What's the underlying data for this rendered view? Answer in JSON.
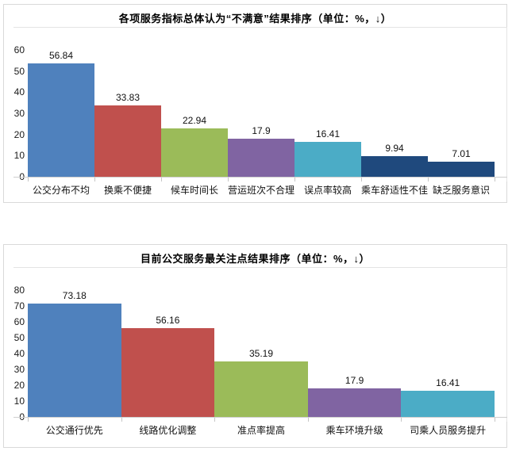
{
  "styles": {
    "panel_border": "#d9d9d9",
    "axis_line_color": "#cfcfcf",
    "frame_line_color": "#e4e4e4",
    "text_color": "#000000"
  },
  "chart_data": [
    {
      "type": "bar",
      "title": "各项服务指标总体认为“不满意”结果排序（单位：%，↓）",
      "categories": [
        "公交分布不均",
        "换乘不便捷",
        "候车时间长",
        "营运班次不合理",
        "误点率较高",
        "乘车舒适性不佳",
        "缺乏服务意识"
      ],
      "values": [
        56.84,
        33.83,
        22.94,
        17.9,
        16.41,
        9.94,
        7.01
      ],
      "data_labels": [
        "56.84",
        "33.83",
        "22.94",
        "17.9",
        "16.41",
        "9.94",
        "7.01"
      ],
      "bar_colors": [
        "#4F81BD",
        "#C0504D",
        "#9BBB59",
        "#8064A2",
        "#4BACC6",
        "#1F497D",
        "#1F497D"
      ],
      "ylim": [
        0,
        60
      ],
      "ytick_step": 10,
      "ytick_labels": [
        "0",
        "10",
        "20",
        "30",
        "40",
        "50",
        "60"
      ],
      "grid": false,
      "legend": "none",
      "xlabel": "",
      "ylabel": ""
    },
    {
      "type": "bar",
      "title": "目前公交服务最关注点结果排序（单位：%，↓）",
      "categories": [
        "公交通行优先",
        "线路优化调整",
        "准点率提高",
        "乘车环境升级",
        "司乘人员服务提升"
      ],
      "values": [
        73.18,
        56.16,
        35.19,
        17.9,
        16.41
      ],
      "data_labels": [
        "73.18",
        "56.16",
        "35.19",
        "17.9",
        "16.41"
      ],
      "bar_colors": [
        "#4F81BD",
        "#C0504D",
        "#9BBB59",
        "#8064A2",
        "#4BACC6"
      ],
      "ylim": [
        0,
        80
      ],
      "ytick_step": 10,
      "ytick_labels": [
        "0",
        "10",
        "20",
        "30",
        "40",
        "50",
        "60",
        "70",
        "80"
      ],
      "grid": false,
      "legend": "none",
      "xlabel": "",
      "ylabel": ""
    }
  ]
}
